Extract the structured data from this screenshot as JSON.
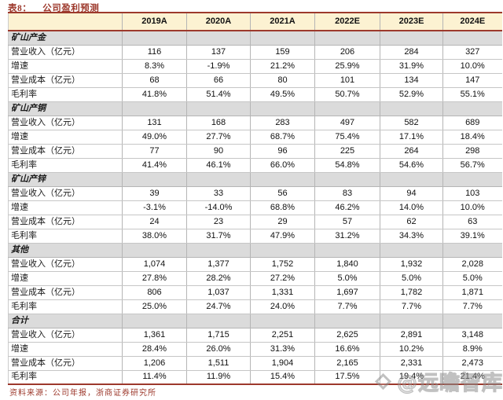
{
  "title": {
    "tag": "表8：",
    "text": "公司盈利预测"
  },
  "table": {
    "corner_label": "",
    "columns": [
      "2019A",
      "2020A",
      "2021A",
      "2022E",
      "2023E",
      "2024E"
    ],
    "groups": [
      {
        "name": "矿山产金",
        "rows": [
          {
            "label": "营业收入（亿元）",
            "values": [
              "116",
              "137",
              "159",
              "206",
              "284",
              "327"
            ]
          },
          {
            "label": "增速",
            "values": [
              "8.3%",
              "-1.9%",
              "21.2%",
              "25.9%",
              "31.9%",
              "10.0%"
            ]
          },
          {
            "label": "营业成本（亿元）",
            "values": [
              "68",
              "66",
              "80",
              "101",
              "134",
              "147"
            ]
          },
          {
            "label": "毛利率",
            "values": [
              "41.8%",
              "51.4%",
              "49.5%",
              "50.7%",
              "52.9%",
              "55.1%"
            ]
          }
        ]
      },
      {
        "name": "矿山产铜",
        "rows": [
          {
            "label": "营业收入（亿元）",
            "values": [
              "131",
              "168",
              "283",
              "497",
              "582",
              "689"
            ]
          },
          {
            "label": "增速",
            "values": [
              "49.0%",
              "27.7%",
              "68.7%",
              "75.4%",
              "17.1%",
              "18.4%"
            ]
          },
          {
            "label": "营业成本（亿元）",
            "values": [
              "77",
              "90",
              "96",
              "225",
              "264",
              "298"
            ]
          },
          {
            "label": "毛利率",
            "values": [
              "41.4%",
              "46.1%",
              "66.0%",
              "54.8%",
              "54.6%",
              "56.7%"
            ]
          }
        ]
      },
      {
        "name": "矿山产锌",
        "rows": [
          {
            "label": "营业收入（亿元）",
            "values": [
              "39",
              "33",
              "56",
              "83",
              "94",
              "103"
            ]
          },
          {
            "label": "增速",
            "values": [
              "-3.1%",
              "-14.0%",
              "68.8%",
              "46.2%",
              "14.0%",
              "10.0%"
            ]
          },
          {
            "label": "营业成本（亿元）",
            "values": [
              "24",
              "23",
              "29",
              "57",
              "62",
              "63"
            ]
          },
          {
            "label": "毛利率",
            "values": [
              "38.0%",
              "31.7%",
              "47.9%",
              "31.2%",
              "34.3%",
              "39.1%"
            ]
          }
        ]
      },
      {
        "name": "其他",
        "rows": [
          {
            "label": "营业收入（亿元）",
            "values": [
              "1,074",
              "1,377",
              "1,752",
              "1,840",
              "1,932",
              "2,028"
            ]
          },
          {
            "label": "增速",
            "values": [
              "27.8%",
              "28.2%",
              "27.2%",
              "5.0%",
              "5.0%",
              "5.0%"
            ]
          },
          {
            "label": "营业成本（亿元）",
            "values": [
              "806",
              "1,037",
              "1,331",
              "1,697",
              "1,782",
              "1,871"
            ]
          },
          {
            "label": "毛利率",
            "values": [
              "25.0%",
              "24.7%",
              "24.0%",
              "7.7%",
              "7.7%",
              "7.7%"
            ]
          }
        ]
      },
      {
        "name": "合计",
        "rows": [
          {
            "label": "营业收入（亿元）",
            "values": [
              "1,361",
              "1,715",
              "2,251",
              "2,625",
              "2,891",
              "3,148"
            ]
          },
          {
            "label": "增速",
            "values": [
              "28.4%",
              "26.0%",
              "31.3%",
              "16.6%",
              "10.2%",
              "8.9%"
            ]
          },
          {
            "label": "营业成本（亿元）",
            "values": [
              "1,206",
              "1,511",
              "1,904",
              "2,165",
              "2,331",
              "2,473"
            ]
          },
          {
            "label": "毛利率",
            "values": [
              "11.4%",
              "11.9%",
              "15.4%",
              "17.5%",
              "19.4%",
              "21.4%"
            ]
          }
        ]
      }
    ]
  },
  "footer": {
    "source": "资料来源：公司年报，浙商证券研究所"
  },
  "watermark": {
    "text": "@远瞻智库",
    "logo": "diamond-cube-logo"
  },
  "colors": {
    "accent_red": "#9d392c",
    "header_bg": "#fcf2d2",
    "group_row_bg": "#dbdbdb",
    "grid_border": "#b5b5b5",
    "row_border": "#c6c6c6",
    "text": "#111111",
    "watermark_gray": "#8f8f8f"
  }
}
